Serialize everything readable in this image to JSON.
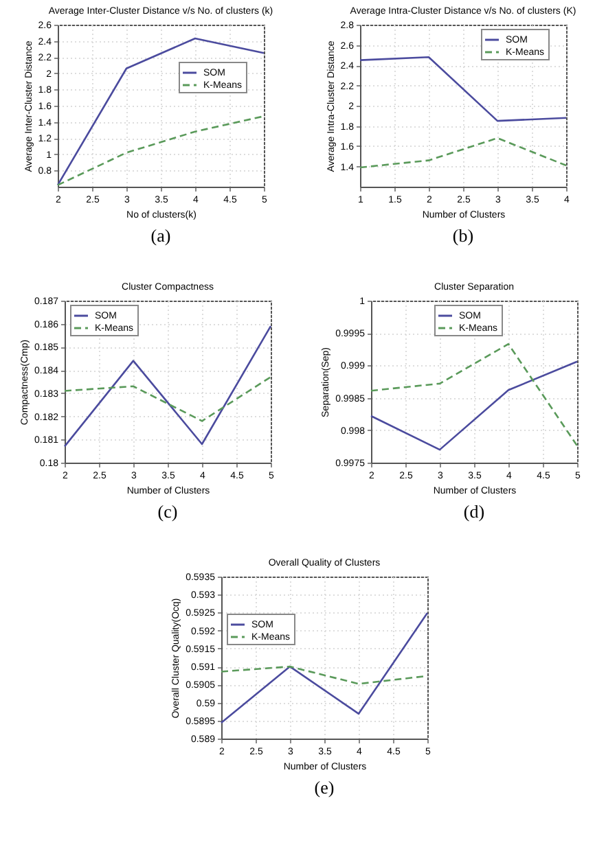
{
  "chart_data": [
    {
      "type": "line",
      "title": "Average Inter-Cluster Distance v/s No. of clusters (k)",
      "xlabel": "No of clusters(k)",
      "ylabel": "Average Inter-Cluster Distance",
      "annotations": [
        "(a)"
      ],
      "x": [
        2,
        3,
        4,
        5
      ],
      "xlim": [
        2,
        5
      ],
      "xticks": [
        2,
        2.5,
        3,
        3.5,
        4,
        4.5,
        5
      ],
      "ylim": [
        0.6,
        2.6
      ],
      "yticks": [
        0.8,
        1,
        1.2,
        1.4,
        1.6,
        1.8,
        2,
        2.2,
        2.4,
        2.6
      ],
      "grid": true,
      "legend": "right",
      "series": [
        {
          "name": "SOM",
          "color": "#4b4b9e",
          "line_style": "solid",
          "values": [
            0.62,
            2.06,
            2.43,
            2.25
          ]
        },
        {
          "name": "K-Means",
          "color": "#5a9a5a",
          "line_style": "dashed",
          "values": [
            0.62,
            1.02,
            1.28,
            1.47
          ]
        }
      ]
    },
    {
      "type": "line",
      "title": "Average Intra-Cluster Distance v/s No. of clusters (K)",
      "xlabel": "Number of Clusters",
      "ylabel": "Average Intra-Cluster Distance",
      "annotations": [
        "(b)"
      ],
      "x": [
        1,
        2,
        3,
        4
      ],
      "xlim": [
        1,
        4
      ],
      "xticks": [
        1,
        1.5,
        2,
        2.5,
        3,
        3.5,
        4
      ],
      "ylim": [
        1.2,
        2.8
      ],
      "yticks": [
        1.4,
        1.6,
        1.8,
        2,
        2.2,
        2.4,
        2.6,
        2.8
      ],
      "grid": true,
      "legend": "top right",
      "series": [
        {
          "name": "SOM",
          "color": "#4b4b9e",
          "line_style": "solid",
          "values": [
            2.45,
            2.48,
            1.85,
            1.88
          ]
        },
        {
          "name": "K-Means",
          "color": "#5a9a5a",
          "line_style": "dashed",
          "values": [
            1.39,
            1.46,
            1.68,
            1.41
          ]
        }
      ]
    },
    {
      "type": "line",
      "title": "Cluster Compactness",
      "xlabel": "Number of Clusters",
      "ylabel": "Compactness(Cmp)",
      "annotations": [
        "(c)"
      ],
      "x": [
        2,
        3,
        4,
        5
      ],
      "xlim": [
        2,
        5
      ],
      "xticks": [
        2,
        2.5,
        3,
        3.5,
        4,
        4.5,
        5
      ],
      "ylim": [
        0.18,
        0.187
      ],
      "yticks": [
        0.18,
        0.181,
        0.182,
        0.183,
        0.184,
        0.185,
        0.186,
        0.187
      ],
      "grid": true,
      "legend": "top left",
      "series": [
        {
          "name": "SOM",
          "color": "#4b4b9e",
          "line_style": "solid",
          "values": [
            0.1807,
            0.1844,
            0.1808,
            0.1859
          ]
        },
        {
          "name": "K-Means",
          "color": "#5a9a5a",
          "line_style": "dashed",
          "values": [
            0.1831,
            0.1833,
            0.1818,
            0.1837
          ]
        }
      ]
    },
    {
      "type": "line",
      "title": "Cluster Separation",
      "xlabel": "Number of Clusters",
      "ylabel": "Separation(Sep)",
      "annotations": [
        "(d)"
      ],
      "x": [
        2,
        3,
        4,
        5
      ],
      "xlim": [
        2,
        5
      ],
      "xticks": [
        2,
        2.5,
        3,
        3.5,
        4,
        4.5,
        5
      ],
      "ylim": [
        0.9975,
        1
      ],
      "yticks": [
        0.9975,
        0.998,
        0.9985,
        0.999,
        0.9995,
        1
      ],
      "grid": true,
      "legend": "top",
      "series": [
        {
          "name": "SOM",
          "color": "#4b4b9e",
          "line_style": "solid",
          "values": [
            0.99822,
            0.9977,
            0.99862,
            0.99906
          ]
        },
        {
          "name": "K-Means",
          "color": "#5a9a5a",
          "line_style": "dashed",
          "values": [
            0.99861,
            0.99872,
            0.99933,
            0.99776
          ]
        }
      ]
    },
    {
      "type": "line",
      "title": "Overall Quality of Clusters",
      "xlabel": "Number of Clusters",
      "ylabel": "Overall Cluster Quality(Ocq)",
      "annotations": [
        "(e)"
      ],
      "x": [
        2,
        3,
        4,
        5
      ],
      "xlim": [
        2,
        5
      ],
      "xticks": [
        2,
        2.5,
        3,
        3.5,
        4,
        4.5,
        5
      ],
      "ylim": [
        0.589,
        0.5935
      ],
      "yticks": [
        0.589,
        0.5895,
        0.59,
        0.5905,
        0.591,
        0.5915,
        0.592,
        0.5925,
        0.593,
        0.5935
      ],
      "grid": true,
      "legend": "left",
      "series": [
        {
          "name": "SOM",
          "color": "#4b4b9e",
          "line_style": "solid",
          "values": [
            0.58944,
            0.591,
            0.58969,
            0.59249
          ]
        },
        {
          "name": "K-Means",
          "color": "#5a9a5a",
          "line_style": "dashed",
          "values": [
            0.59086,
            0.591,
            0.59052,
            0.59074
          ]
        }
      ]
    }
  ]
}
